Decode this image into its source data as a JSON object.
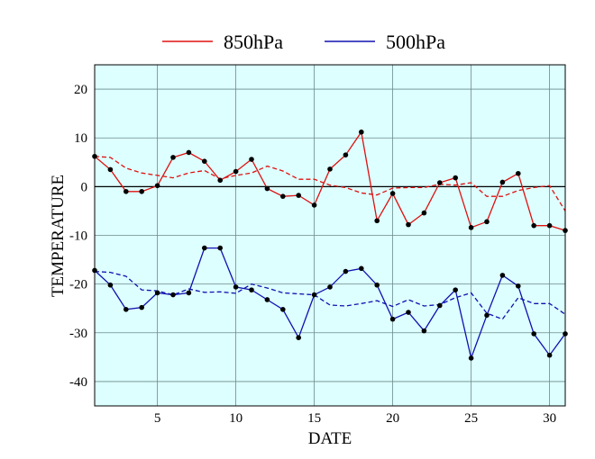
{
  "chart_data": {
    "type": "line",
    "xlabel": "DATE",
    "ylabel": "TEMPERATURE",
    "xlim": [
      1,
      31
    ],
    "ylim": [
      -45,
      25
    ],
    "xticks": [
      5,
      10,
      15,
      20,
      25,
      30
    ],
    "yticks": [
      20,
      10,
      0,
      -10,
      -20,
      -30,
      -40
    ],
    "grid": true,
    "legend_position": "top",
    "background": "#ddffff",
    "reference_line_y": 0,
    "x": [
      1,
      2,
      3,
      4,
      5,
      6,
      7,
      8,
      9,
      10,
      11,
      12,
      13,
      14,
      15,
      16,
      17,
      18,
      19,
      20,
      21,
      22,
      23,
      24,
      25,
      26,
      27,
      28,
      29,
      30,
      31
    ],
    "series": [
      {
        "name": "850hPa",
        "color": "#e01010",
        "style": "solid-markers",
        "values": [
          6.2,
          3.5,
          -1.0,
          -1.0,
          0.2,
          6.0,
          7.0,
          5.2,
          1.3,
          3.1,
          5.6,
          -0.4,
          -2.0,
          -1.8,
          -3.8,
          3.6,
          6.5,
          11.2,
          -7.0,
          -1.4,
          -7.8,
          -5.4,
          0.8,
          1.8,
          -8.4,
          -7.2,
          0.9,
          2.7,
          -8.0,
          -8.0,
          -9.0
        ]
      },
      {
        "name": "850hPa climatology",
        "color": "#e01010",
        "style": "dashed",
        "values": [
          6.2,
          6.0,
          3.8,
          2.8,
          2.3,
          1.8,
          2.8,
          3.3,
          1.6,
          2.3,
          2.8,
          4.2,
          3.2,
          1.5,
          1.5,
          0.3,
          -0.2,
          -1.3,
          -1.7,
          -0.3,
          -0.2,
          -0.2,
          0.5,
          0.3,
          0.8,
          -2.0,
          -2.0,
          -0.8,
          -0.2,
          0.2,
          -5.0
        ]
      },
      {
        "name": "500hPa",
        "color": "#1010b0",
        "style": "solid-markers",
        "values": [
          -17.2,
          -20.2,
          -25.2,
          -24.8,
          -21.8,
          -22.2,
          -21.8,
          -12.6,
          -12.6,
          -20.6,
          -21.2,
          -23.2,
          -25.2,
          -31.0,
          -22.2,
          -20.6,
          -17.4,
          -16.8,
          -20.2,
          -27.2,
          -25.8,
          -29.6,
          -24.4,
          -21.2,
          -35.2,
          -26.4,
          -18.2,
          -20.4,
          -30.2,
          -34.6,
          -30.2
        ]
      },
      {
        "name": "500hPa climatology",
        "color": "#1010b0",
        "style": "dashed",
        "values": [
          -17.4,
          -17.6,
          -18.4,
          -21.2,
          -21.4,
          -22.2,
          -21.0,
          -21.7,
          -21.6,
          -21.9,
          -20.0,
          -20.8,
          -21.8,
          -22.0,
          -22.2,
          -24.3,
          -24.5,
          -24.0,
          -23.4,
          -24.6,
          -23.2,
          -24.5,
          -24.2,
          -22.8,
          -21.8,
          -26.0,
          -27.2,
          -22.8,
          -24.0,
          -24.0,
          -26.2
        ]
      }
    ],
    "legend": [
      {
        "label": "850hPa",
        "color": "#e01010"
      },
      {
        "label": "500hPa",
        "color": "#1010b0"
      }
    ]
  }
}
